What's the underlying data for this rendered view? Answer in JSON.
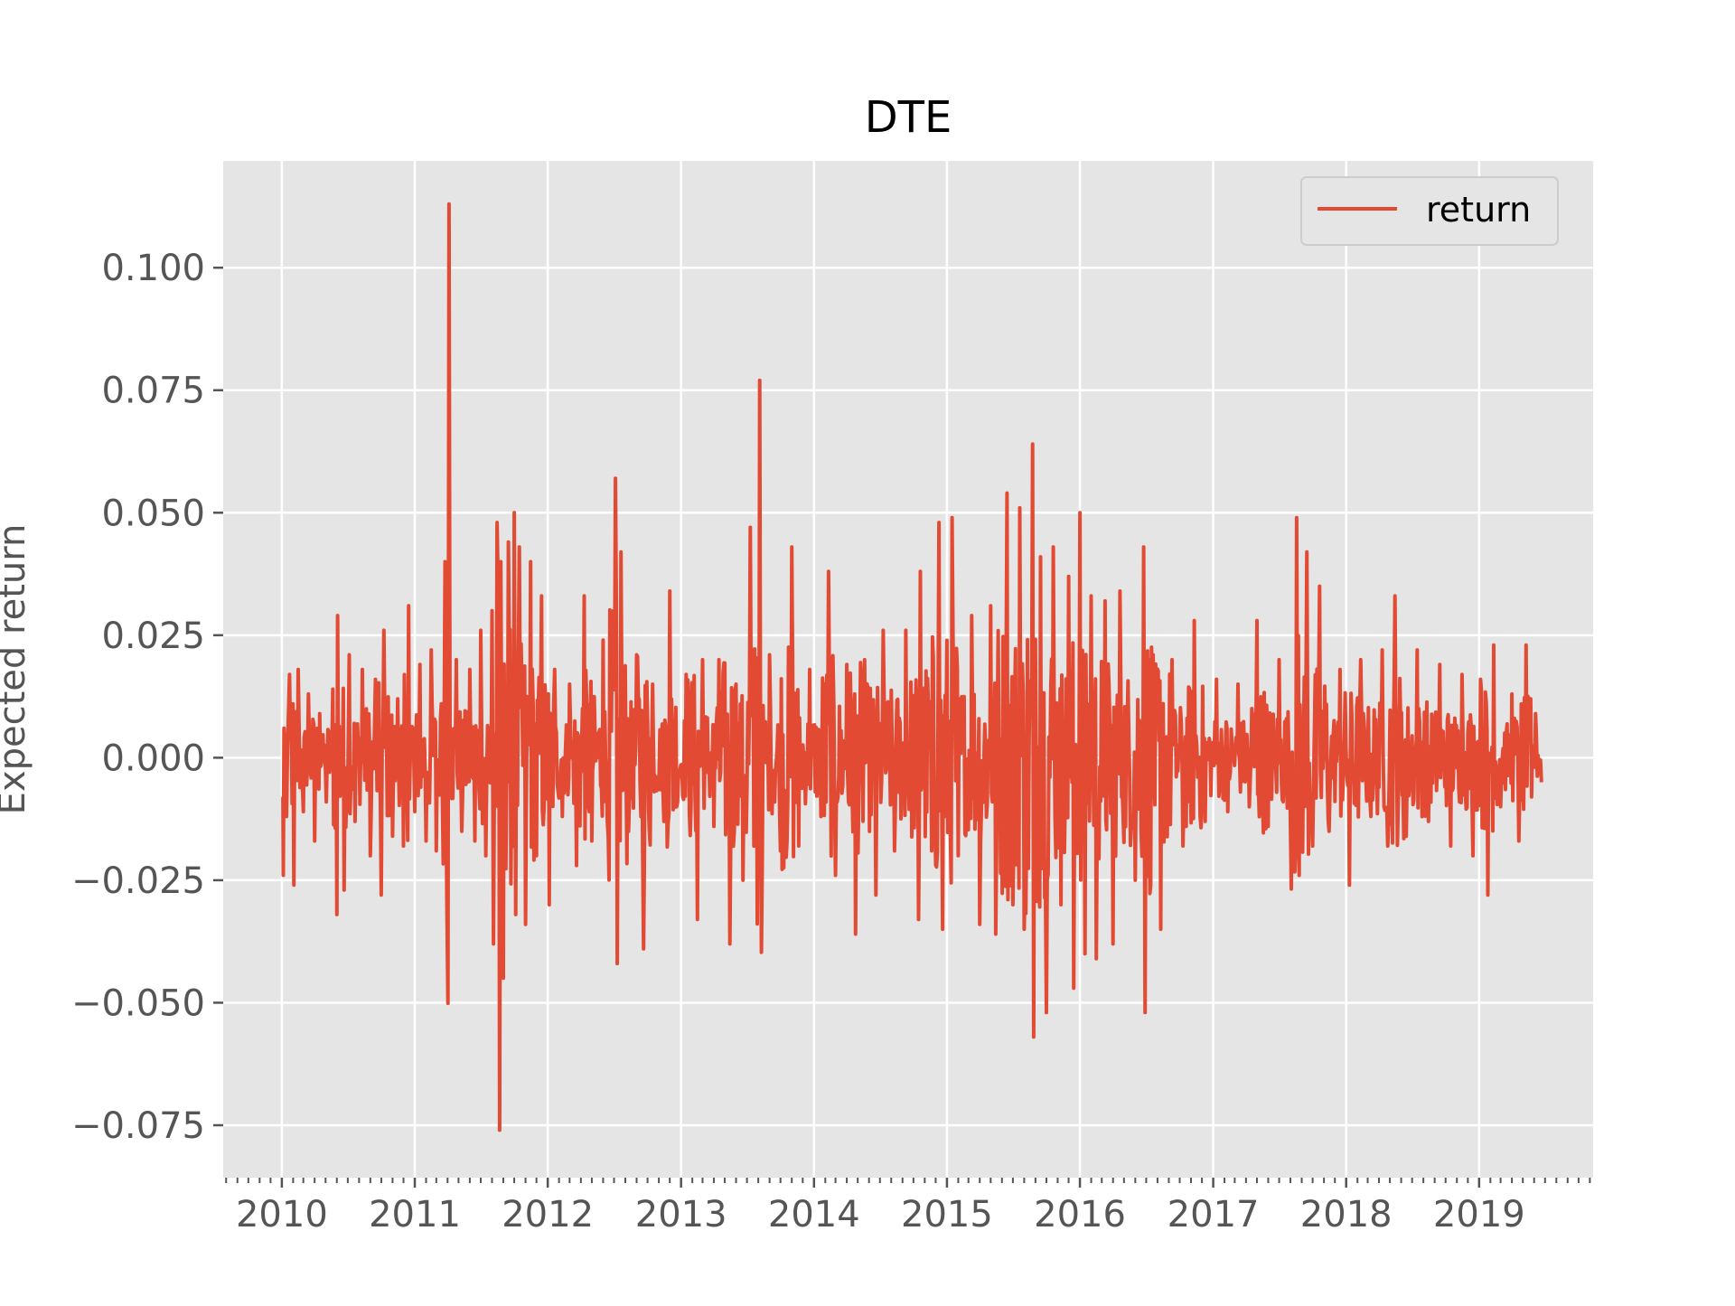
{
  "colors": {
    "plot_background": "#e5e5e5",
    "grid": "#ffffff",
    "series": "#e24a33",
    "tick_color": "#555555"
  },
  "chart_data": {
    "type": "line",
    "title": "DTE",
    "xlabel": "",
    "ylabel": "Expected return",
    "xlim": [
      "2009-07-24",
      "2019-11-10"
    ],
    "ylim": [
      -0.0857,
      0.1218
    ],
    "x_ticks": [
      "2010",
      "2011",
      "2012",
      "2013",
      "2014",
      "2015",
      "2016",
      "2017",
      "2018",
      "2019"
    ],
    "y_ticks": [
      "0.100",
      "0.075",
      "0.050",
      "0.025",
      "0.000",
      "−0.025",
      "−0.050",
      "−0.075"
    ],
    "y_tick_values": [
      0.1,
      0.075,
      0.05,
      0.025,
      0.0,
      -0.025,
      -0.05,
      -0.075
    ],
    "grid": true,
    "legend": {
      "position": "upper right",
      "entries": [
        "return"
      ]
    },
    "x_range": [
      "2010-01-04",
      "2019-06-21"
    ],
    "series": [
      {
        "name": "return",
        "points": [
          [
            "2010-01-04",
            -0.008
          ],
          [
            "2010-01-05",
            -0.024
          ],
          [
            "2010-01-07",
            0.006
          ],
          [
            "2010-01-14",
            -0.012
          ],
          [
            "2010-01-22",
            0.017
          ],
          [
            "2010-02-03",
            -0.026
          ],
          [
            "2010-02-15",
            0.018
          ],
          [
            "2010-03-01",
            -0.011
          ],
          [
            "2010-03-15",
            0.013
          ],
          [
            "2010-04-01",
            -0.017
          ],
          [
            "2010-04-15",
            0.009
          ],
          [
            "2010-05-03",
            -0.009
          ],
          [
            "2010-05-21",
            0.014
          ],
          [
            "2010-06-01",
            -0.032
          ],
          [
            "2010-06-03",
            0.029
          ],
          [
            "2010-06-21",
            -0.027
          ],
          [
            "2010-07-05",
            0.021
          ],
          [
            "2010-07-21",
            -0.013
          ],
          [
            "2010-08-10",
            0.018
          ],
          [
            "2010-09-01",
            -0.02
          ],
          [
            "2010-09-15",
            0.016
          ],
          [
            "2010-10-01",
            -0.028
          ],
          [
            "2010-10-08",
            0.026
          ],
          [
            "2010-11-01",
            -0.016
          ],
          [
            "2010-11-15",
            0.012
          ],
          [
            "2010-12-01",
            -0.018
          ],
          [
            "2010-12-15",
            0.031
          ],
          [
            "2011-01-01",
            -0.011
          ],
          [
            "2011-01-15",
            0.019
          ],
          [
            "2011-02-01",
            -0.017
          ],
          [
            "2011-02-15",
            0.022
          ],
          [
            "2011-03-01",
            -0.019
          ],
          [
            "2011-03-15",
            0.011
          ],
          [
            "2011-03-25",
            0.04
          ],
          [
            "2011-03-30",
            -0.029
          ],
          [
            "2011-04-05",
            0.113
          ],
          [
            "2011-04-08",
            -0.007
          ],
          [
            "2011-04-25",
            0.02
          ],
          [
            "2011-05-10",
            -0.015
          ],
          [
            "2011-06-01",
            0.018
          ],
          [
            "2011-06-15",
            -0.017
          ],
          [
            "2011-07-01",
            0.026
          ],
          [
            "2011-07-15",
            -0.02
          ],
          [
            "2011-08-01",
            0.03
          ],
          [
            "2011-08-05",
            -0.038
          ],
          [
            "2011-08-15",
            0.048
          ],
          [
            "2011-08-22",
            -0.076
          ],
          [
            "2011-08-25",
            0.04
          ],
          [
            "2011-09-01",
            -0.045
          ],
          [
            "2011-09-15",
            0.044
          ],
          [
            "2011-10-01",
            0.05
          ],
          [
            "2011-10-05",
            -0.032
          ],
          [
            "2011-10-15",
            0.043
          ],
          [
            "2011-11-01",
            -0.034
          ],
          [
            "2011-11-15",
            0.04
          ],
          [
            "2011-12-01",
            -0.02
          ],
          [
            "2011-12-15",
            0.033
          ],
          [
            "2012-01-05",
            -0.03
          ],
          [
            "2012-01-20",
            0.018
          ],
          [
            "2012-02-10",
            -0.012
          ],
          [
            "2012-03-01",
            0.015
          ],
          [
            "2012-03-20",
            -0.022
          ],
          [
            "2012-04-10",
            0.033
          ],
          [
            "2012-05-01",
            -0.017
          ],
          [
            "2012-06-01",
            0.024
          ],
          [
            "2012-06-15",
            -0.016
          ],
          [
            "2012-07-05",
            0.057
          ],
          [
            "2012-07-10",
            -0.042
          ],
          [
            "2012-07-20",
            0.042
          ],
          [
            "2012-08-10",
            -0.015
          ],
          [
            "2012-09-01",
            0.021
          ],
          [
            "2012-09-20",
            -0.039
          ],
          [
            "2012-10-15",
            0.015
          ],
          [
            "2012-11-15",
            -0.013
          ],
          [
            "2012-12-01",
            0.034
          ],
          [
            "2012-12-20",
            -0.01
          ],
          [
            "2013-01-15",
            0.017
          ],
          [
            "2013-02-15",
            -0.033
          ],
          [
            "2013-03-01",
            0.02
          ],
          [
            "2013-04-01",
            -0.014
          ],
          [
            "2013-04-15",
            0.02
          ],
          [
            "2013-05-15",
            -0.038
          ],
          [
            "2013-06-01",
            0.015
          ],
          [
            "2013-06-20",
            -0.025
          ],
          [
            "2013-07-10",
            0.047
          ],
          [
            "2013-07-20",
            -0.018
          ],
          [
            "2013-08-05",
            0.077
          ],
          [
            "2013-08-12",
            -0.02
          ],
          [
            "2013-09-01",
            0.021
          ],
          [
            "2013-10-01",
            -0.019
          ],
          [
            "2013-11-01",
            0.043
          ],
          [
            "2013-11-20",
            -0.018
          ],
          [
            "2013-12-20",
            0.018
          ],
          [
            "2014-01-20",
            -0.012
          ],
          [
            "2014-02-10",
            0.038
          ],
          [
            "2014-03-01",
            -0.024
          ],
          [
            "2014-04-01",
            0.019
          ],
          [
            "2014-04-25",
            -0.036
          ],
          [
            "2014-05-20",
            0.02
          ],
          [
            "2014-06-20",
            -0.028
          ],
          [
            "2014-07-10",
            0.026
          ],
          [
            "2014-08-10",
            -0.019
          ],
          [
            "2014-09-10",
            0.026
          ],
          [
            "2014-10-15",
            -0.033
          ],
          [
            "2014-10-20",
            0.038
          ],
          [
            "2014-11-20",
            -0.019
          ],
          [
            "2014-12-10",
            0.048
          ],
          [
            "2014-12-20",
            -0.035
          ],
          [
            "2015-01-15",
            0.049
          ],
          [
            "2015-02-01",
            -0.02
          ],
          [
            "2015-03-10",
            0.029
          ],
          [
            "2015-04-01",
            -0.034
          ],
          [
            "2015-05-01",
            0.031
          ],
          [
            "2015-05-15",
            -0.036
          ],
          [
            "2015-06-15",
            0.054
          ],
          [
            "2015-07-01",
            -0.03
          ],
          [
            "2015-07-20",
            0.051
          ],
          [
            "2015-08-01",
            -0.035
          ],
          [
            "2015-08-24",
            0.064
          ],
          [
            "2015-08-27",
            -0.057
          ],
          [
            "2015-09-15",
            0.041
          ],
          [
            "2015-10-01",
            -0.052
          ],
          [
            "2015-10-20",
            0.043
          ],
          [
            "2015-11-10",
            -0.03
          ],
          [
            "2015-12-01",
            0.037
          ],
          [
            "2015-12-15",
            -0.047
          ],
          [
            "2016-01-01",
            0.05
          ],
          [
            "2016-01-15",
            -0.04
          ],
          [
            "2016-02-01",
            0.033
          ],
          [
            "2016-02-15",
            -0.041
          ],
          [
            "2016-03-10",
            0.032
          ],
          [
            "2016-04-01",
            -0.038
          ],
          [
            "2016-04-20",
            0.034
          ],
          [
            "2016-06-01",
            -0.025
          ],
          [
            "2016-06-24",
            0.043
          ],
          [
            "2016-06-28",
            -0.052
          ],
          [
            "2016-07-20",
            0.021
          ],
          [
            "2016-08-10",
            -0.035
          ],
          [
            "2016-09-10",
            0.02
          ],
          [
            "2016-10-10",
            -0.018
          ],
          [
            "2016-11-10",
            0.028
          ],
          [
            "2016-12-10",
            -0.013
          ],
          [
            "2017-01-10",
            0.016
          ],
          [
            "2017-02-10",
            -0.011
          ],
          [
            "2017-03-10",
            0.015
          ],
          [
            "2017-04-10",
            -0.01
          ],
          [
            "2017-05-01",
            0.028
          ],
          [
            "2017-06-01",
            -0.014
          ],
          [
            "2017-07-01",
            0.02
          ],
          [
            "2017-08-01",
            -0.013
          ],
          [
            "2017-08-18",
            0.049
          ],
          [
            "2017-08-25",
            -0.024
          ],
          [
            "2017-09-15",
            0.042
          ],
          [
            "2017-10-01",
            -0.018
          ],
          [
            "2017-10-20",
            0.035
          ],
          [
            "2017-11-15",
            -0.015
          ],
          [
            "2017-12-15",
            0.018
          ],
          [
            "2018-01-10",
            -0.026
          ],
          [
            "2018-02-10",
            0.02
          ],
          [
            "2018-03-10",
            -0.012
          ],
          [
            "2018-04-10",
            0.022
          ],
          [
            "2018-04-25",
            -0.018
          ],
          [
            "2018-05-15",
            0.033
          ],
          [
            "2018-06-15",
            -0.016
          ],
          [
            "2018-07-15",
            0.022
          ],
          [
            "2018-08-15",
            -0.013
          ],
          [
            "2018-09-15",
            0.019
          ],
          [
            "2018-10-15",
            -0.018
          ],
          [
            "2018-11-15",
            0.017
          ],
          [
            "2018-12-15",
            -0.02
          ],
          [
            "2019-01-05",
            0.016
          ],
          [
            "2019-01-25",
            -0.028
          ],
          [
            "2019-02-10",
            0.023
          ],
          [
            "2019-03-01",
            -0.01
          ],
          [
            "2019-04-01",
            0.013
          ],
          [
            "2019-04-20",
            -0.017
          ],
          [
            "2019-05-10",
            0.023
          ],
          [
            "2019-05-25",
            -0.008
          ],
          [
            "2019-06-05",
            0.009
          ],
          [
            "2019-06-21",
            -0.005
          ]
        ]
      }
    ]
  }
}
